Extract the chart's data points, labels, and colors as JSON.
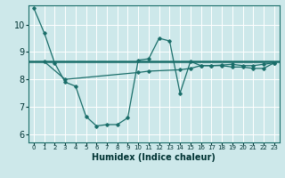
{
  "title": "",
  "xlabel": "Humidex (Indice chaleur)",
  "ylabel": "",
  "bg_color": "#cde8ea",
  "grid_color": "#b0d8dc",
  "line_color": "#1a6e6a",
  "xlim": [
    -0.5,
    23.5
  ],
  "ylim": [
    5.7,
    10.7
  ],
  "yticks": [
    6,
    7,
    8,
    9,
    10
  ],
  "xticks": [
    0,
    1,
    2,
    3,
    4,
    5,
    6,
    7,
    8,
    9,
    10,
    11,
    12,
    13,
    14,
    15,
    16,
    17,
    18,
    19,
    20,
    21,
    22,
    23
  ],
  "series1_x": [
    0,
    1,
    2,
    3,
    4,
    5,
    6,
    7,
    8,
    9,
    10,
    11,
    12,
    13,
    14,
    15,
    16,
    17,
    18,
    19,
    20,
    21,
    22,
    23
  ],
  "series1_y": [
    10.6,
    9.7,
    8.6,
    7.9,
    7.75,
    6.65,
    6.3,
    6.35,
    6.35,
    6.6,
    8.7,
    8.75,
    9.5,
    9.4,
    7.5,
    8.65,
    8.5,
    8.5,
    8.5,
    8.45,
    8.45,
    8.4,
    8.4,
    8.6
  ],
  "series2_x": [
    1,
    3,
    10,
    11,
    14,
    15,
    16,
    17,
    18,
    19,
    20,
    21,
    22,
    23
  ],
  "series2_y": [
    8.65,
    8.0,
    8.25,
    8.3,
    8.35,
    8.4,
    8.5,
    8.5,
    8.52,
    8.55,
    8.5,
    8.5,
    8.55,
    8.6
  ],
  "hline_y": 8.65,
  "font_color": "#003333",
  "xlabel_fontsize": 7,
  "tick_fontsize_x": 5,
  "tick_fontsize_y": 7
}
